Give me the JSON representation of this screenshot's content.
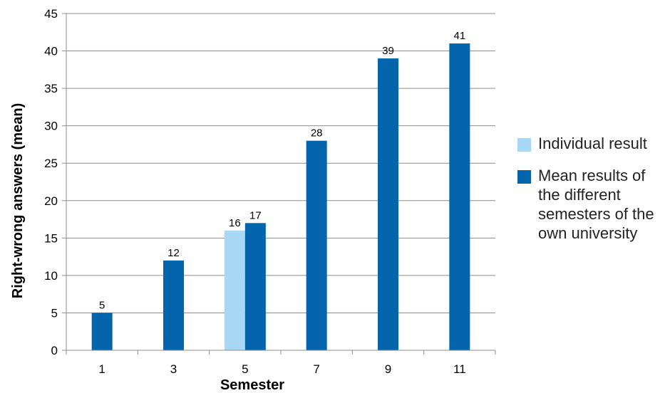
{
  "chart_data": {
    "type": "bar",
    "title": "",
    "xlabel": "Semester",
    "ylabel": "Right-wrong answers (mean)",
    "categories": [
      "1",
      "3",
      "5",
      "7",
      "9",
      "11"
    ],
    "ylim": [
      0,
      45
    ],
    "yticks": [
      0,
      5,
      10,
      15,
      20,
      25,
      30,
      35,
      40,
      45
    ],
    "grid": true,
    "legend_position": "right",
    "series": [
      {
        "name": "Individual result",
        "color": "#a9d8f7",
        "values": [
          null,
          null,
          16,
          null,
          null,
          null
        ],
        "labels": [
          "",
          "",
          "16",
          "",
          "",
          ""
        ]
      },
      {
        "name": "Mean results of the different semesters of the own university",
        "color": "#0465ad",
        "values": [
          5,
          12,
          17,
          28,
          39,
          41
        ],
        "labels": [
          "5",
          "12",
          "17",
          "28",
          "39",
          "41"
        ]
      }
    ]
  }
}
